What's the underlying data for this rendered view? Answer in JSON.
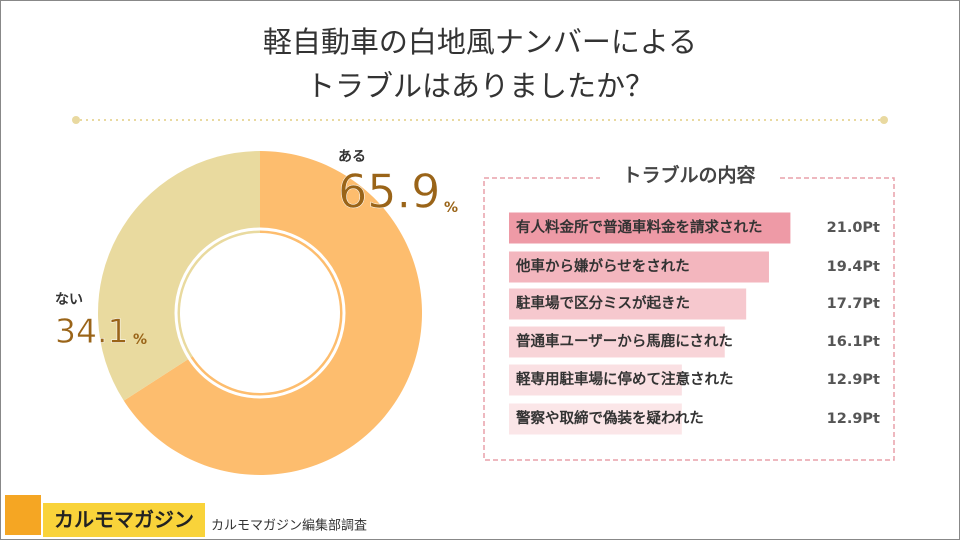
{
  "title": [
    "軽自動車の白地風ナンバーによる",
    "トラブルはありましたか？"
  ],
  "chart_data": [
    {
      "type": "pie",
      "categories": [
        "ある",
        "ない"
      ],
      "values": [
        65.9,
        34.1
      ],
      "value_unit": "%",
      "colors": [
        "#FDBD6E",
        "#E9DA9F"
      ]
    },
    {
      "type": "bar",
      "title": "トラブルの内容",
      "categories": [
        "有人料金所で普通車料金を請求された",
        "他車から嫌がらせをされた",
        "駐車場で区分ミスが起きた",
        "普通車ユーザーから馬鹿にされた",
        "軽専用駐車場に停めて注意された",
        "警察や取締で偽装を疑われた"
      ],
      "values": [
        21.0,
        19.4,
        17.7,
        16.1,
        12.9,
        12.9
      ],
      "value_labels": [
        "21.0Pt",
        "19.4Pt",
        "17.7Pt",
        "16.1Pt",
        "12.9Pt",
        "12.9Pt"
      ],
      "colors": [
        "#EE9AA6",
        "#F3B6BE",
        "#F6C8CE",
        "#F8D4D8",
        "#FAE0E3",
        "#FBE6E8"
      ]
    }
  ],
  "footer": {
    "brand": "カルモマガジン",
    "source": "カルモマガジン編集部調査"
  }
}
